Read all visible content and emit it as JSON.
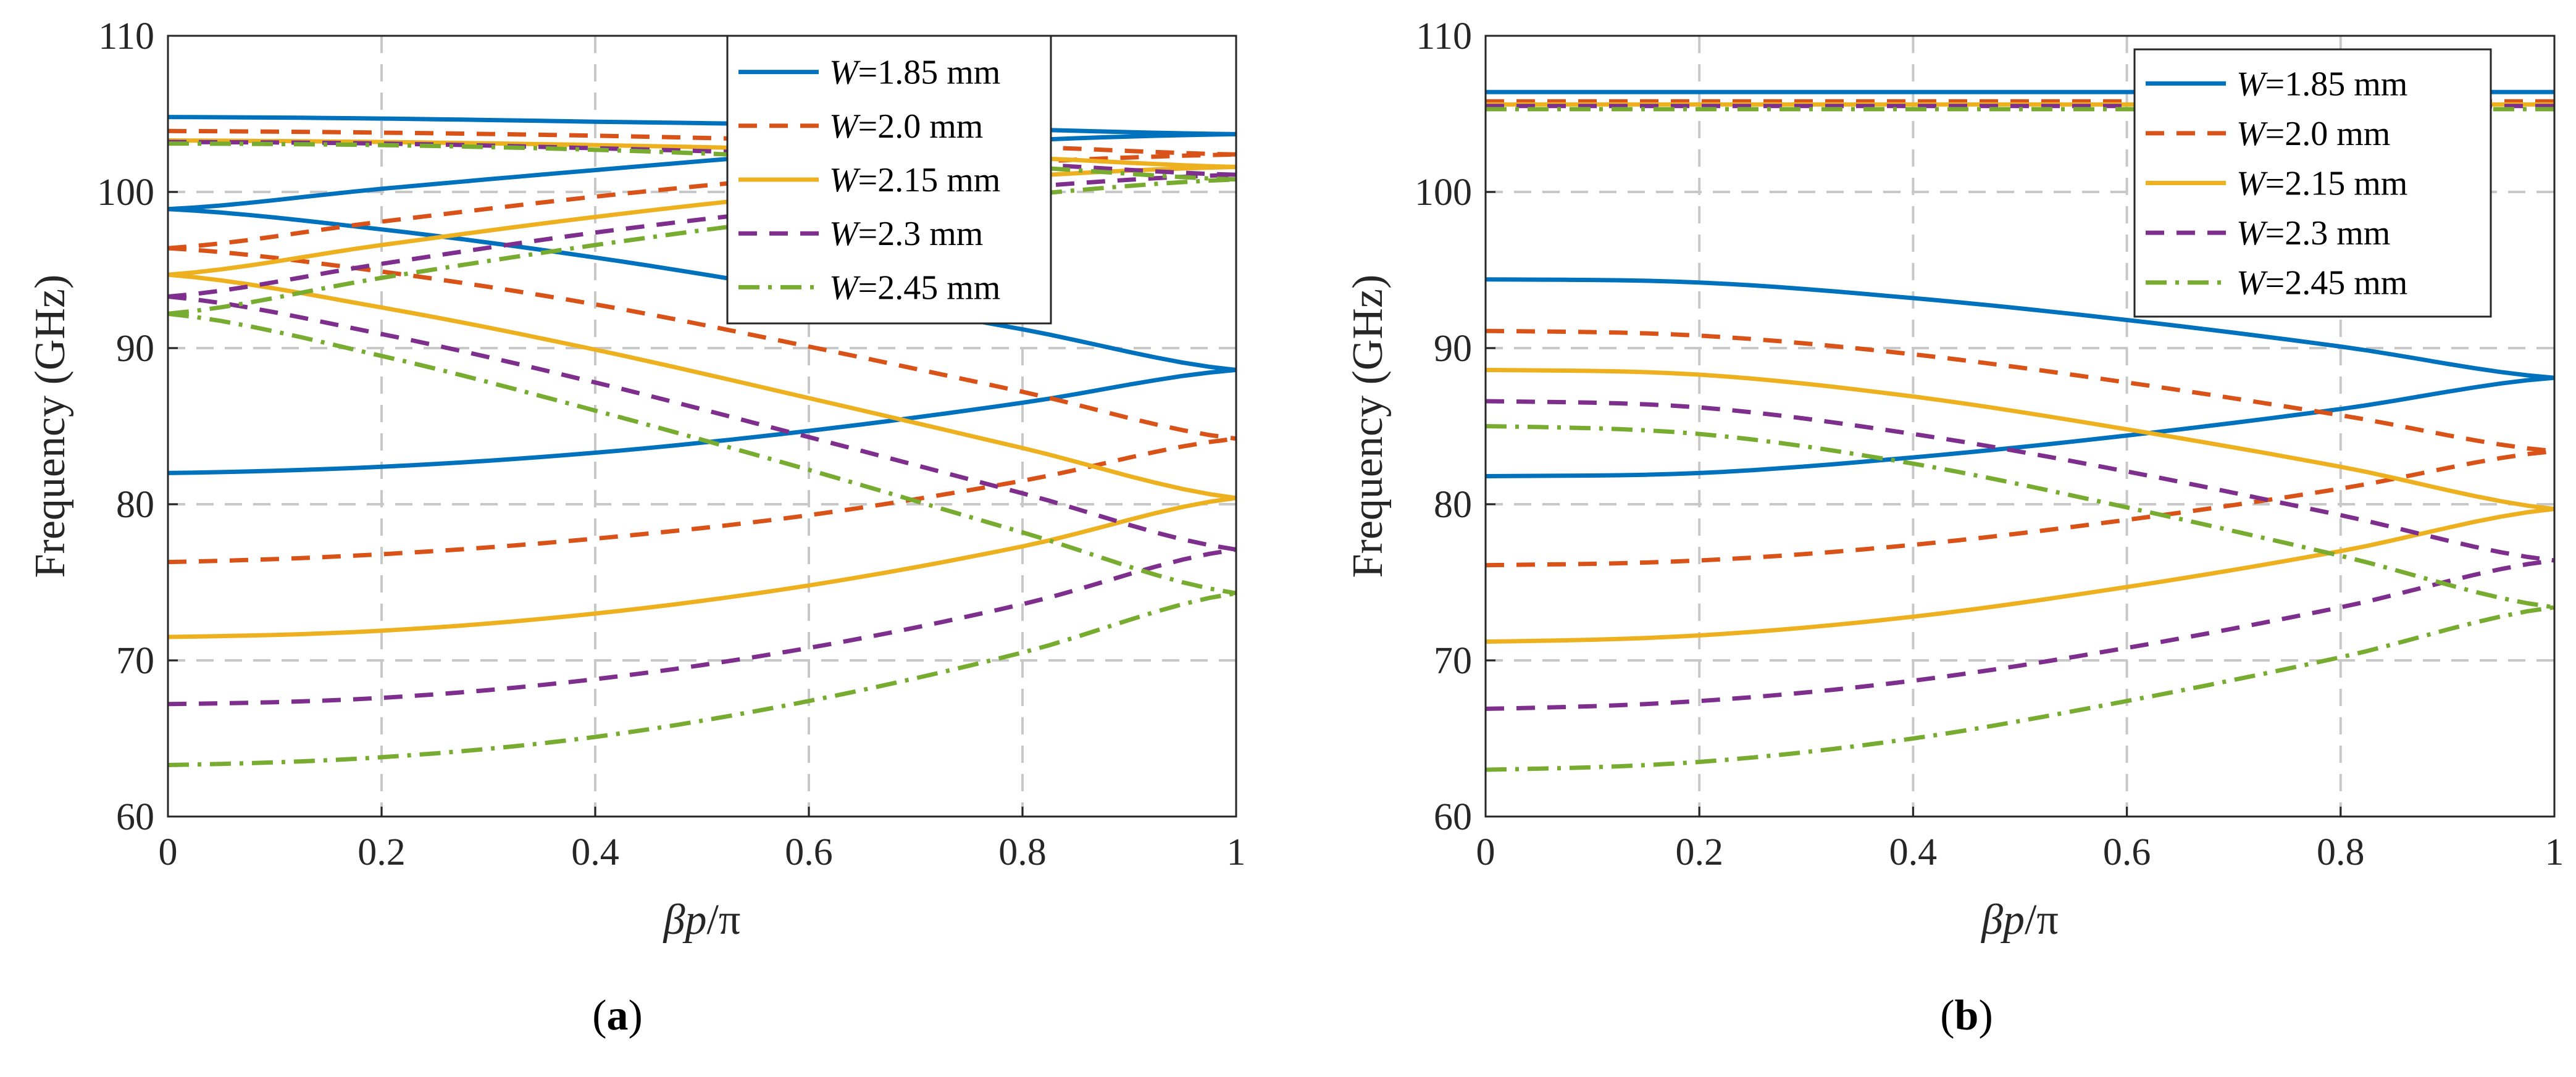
{
  "colors": {
    "blue": "#0072BD",
    "orange": "#D95319",
    "yellow": "#EDB120",
    "purple": "#7E2F8E",
    "green": "#77AC30"
  },
  "panels": [
    {
      "label_prefix": "(",
      "label_letter": "a",
      "label_suffix": ")"
    },
    {
      "label_prefix": "(",
      "label_letter": "b",
      "label_suffix": ")"
    }
  ],
  "chart_data": [
    {
      "type": "line",
      "title": "",
      "xlabel_main": "βp",
      "xlabel_tail": "/π",
      "ylabel": "Frequency (GHz)",
      "xlim": [
        0,
        1
      ],
      "ylim": [
        60,
        110
      ],
      "xticks": [
        "0",
        "0.2",
        "0.4",
        "0.6",
        "0.8",
        "1"
      ],
      "yticks": [
        "60",
        "70",
        "80",
        "90",
        "100",
        "110"
      ],
      "grid": true,
      "legend_position": "top-right",
      "x": [
        0,
        0.2,
        0.4,
        0.6,
        0.8,
        1
      ],
      "series": [
        {
          "legend_var": "W",
          "legend_rest": "=1.85 mm",
          "color": "blue",
          "style": "solid",
          "in_legend": true,
          "values": [
            82.0,
            82.4,
            83.3,
            84.7,
            86.5,
            88.6
          ]
        },
        {
          "color": "blue",
          "style": "solid",
          "in_legend": false,
          "values": [
            98.9,
            97.6,
            95.8,
            93.6,
            91.2,
            88.6
          ]
        },
        {
          "color": "blue",
          "style": "solid",
          "in_legend": false,
          "values": [
            98.9,
            100.2,
            101.4,
            102.5,
            103.3,
            103.7
          ]
        },
        {
          "color": "blue",
          "style": "solid",
          "in_legend": false,
          "values": [
            104.8,
            104.7,
            104.5,
            104.3,
            104.0,
            103.7
          ]
        },
        {
          "legend_var": "W",
          "legend_rest": "=2.0 mm",
          "color": "orange",
          "style": "dashed",
          "in_legend": true,
          "values": [
            76.3,
            76.8,
            77.8,
            79.3,
            81.5,
            84.2
          ]
        },
        {
          "color": "orange",
          "style": "dashed",
          "in_legend": false,
          "values": [
            96.4,
            94.9,
            92.8,
            90.1,
            87.2,
            84.2
          ]
        },
        {
          "color": "orange",
          "style": "dashed",
          "in_legend": false,
          "values": [
            96.4,
            98.1,
            99.7,
            101.0,
            101.9,
            102.4
          ]
        },
        {
          "color": "orange",
          "style": "dashed",
          "in_legend": false,
          "values": [
            103.9,
            103.8,
            103.6,
            103.3,
            102.9,
            102.4
          ]
        },
        {
          "legend_var": "W",
          "legend_rest": "=2.15 mm",
          "color": "yellow",
          "style": "solid",
          "in_legend": true,
          "values": [
            71.5,
            71.9,
            73.0,
            74.8,
            77.3,
            80.4
          ]
        },
        {
          "color": "yellow",
          "style": "solid",
          "in_legend": false,
          "values": [
            94.7,
            92.6,
            89.9,
            86.8,
            83.6,
            80.4
          ]
        },
        {
          "color": "yellow",
          "style": "solid",
          "in_legend": false,
          "values": [
            94.7,
            96.6,
            98.4,
            99.9,
            101.0,
            101.6
          ]
        },
        {
          "color": "yellow",
          "style": "solid",
          "in_legend": false,
          "values": [
            103.3,
            103.2,
            103.0,
            102.7,
            102.2,
            101.6
          ]
        },
        {
          "legend_var": "W",
          "legend_rest": "=2.3 mm",
          "color": "purple",
          "style": "dashed",
          "in_legend": true,
          "values": [
            67.2,
            67.6,
            68.8,
            70.8,
            73.6,
            77.1
          ]
        },
        {
          "color": "purple",
          "style": "dashed",
          "in_legend": false,
          "values": [
            93.3,
            90.9,
            87.8,
            84.3,
            80.7,
            77.1
          ]
        },
        {
          "color": "purple",
          "style": "dashed",
          "in_legend": false,
          "values": [
            93.3,
            95.4,
            97.4,
            99.0,
            100.3,
            101.1
          ]
        },
        {
          "color": "purple",
          "style": "dashed",
          "in_legend": false,
          "values": [
            103.2,
            103.1,
            102.8,
            102.4,
            101.8,
            101.1
          ]
        },
        {
          "legend_var": "W",
          "legend_rest": "=2.45 mm",
          "color": "green",
          "style": "dashdot",
          "in_legend": true,
          "values": [
            63.3,
            63.8,
            65.1,
            67.4,
            70.5,
            74.3
          ]
        },
        {
          "color": "green",
          "style": "dashdot",
          "in_legend": false,
          "values": [
            92.2,
            89.5,
            86.0,
            82.2,
            78.2,
            74.3
          ]
        },
        {
          "color": "green",
          "style": "dashdot",
          "in_legend": false,
          "values": [
            92.2,
            94.5,
            96.6,
            98.4,
            99.8,
            100.8
          ]
        },
        {
          "color": "green",
          "style": "dashdot",
          "in_legend": false,
          "values": [
            103.1,
            103.0,
            102.7,
            102.2,
            101.6,
            100.8
          ]
        }
      ]
    },
    {
      "type": "line",
      "title": "",
      "xlabel_main": "βp",
      "xlabel_tail": "/π",
      "ylabel": "Frequency (GHz)",
      "xlim": [
        0,
        1
      ],
      "ylim": [
        60,
        110
      ],
      "xticks": [
        "0",
        "0.2",
        "0.4",
        "0.6",
        "0.8",
        "1"
      ],
      "yticks": [
        "60",
        "70",
        "80",
        "90",
        "100",
        "110"
      ],
      "grid": true,
      "legend_position": "top-right",
      "x": [
        0,
        0.2,
        0.4,
        0.6,
        0.8,
        1
      ],
      "series": [
        {
          "legend_var": "W",
          "legend_rest": "=1.85 mm",
          "color": "blue",
          "style": "solid",
          "in_legend": true,
          "values": [
            81.8,
            82.0,
            83.0,
            84.4,
            86.1,
            88.1
          ]
        },
        {
          "color": "blue",
          "style": "solid",
          "in_legend": false,
          "values": [
            94.4,
            94.2,
            93.2,
            91.8,
            90.1,
            88.1
          ]
        },
        {
          "color": "blue",
          "style": "solid",
          "in_legend": false,
          "values": [
            106.4,
            106.4,
            106.4,
            106.4,
            106.4,
            106.4
          ]
        },
        {
          "legend_var": "W",
          "legend_rest": "=2.0 mm",
          "color": "orange",
          "style": "dashed",
          "in_legend": true,
          "values": [
            76.1,
            76.4,
            77.4,
            79.0,
            81.0,
            83.4
          ]
        },
        {
          "color": "orange",
          "style": "dashed",
          "in_legend": false,
          "values": [
            91.1,
            90.8,
            89.6,
            87.8,
            85.7,
            83.4
          ]
        },
        {
          "color": "orange",
          "style": "dashed",
          "in_legend": false,
          "values": [
            105.8,
            105.8,
            105.8,
            105.8,
            105.8,
            105.8
          ]
        },
        {
          "legend_var": "W",
          "legend_rest": "=2.15 mm",
          "color": "yellow",
          "style": "solid",
          "in_legend": true,
          "values": [
            71.2,
            71.6,
            72.8,
            74.7,
            77.0,
            79.7
          ]
        },
        {
          "color": "yellow",
          "style": "solid",
          "in_legend": false,
          "values": [
            88.6,
            88.3,
            86.9,
            84.8,
            82.4,
            79.7
          ]
        },
        {
          "color": "yellow",
          "style": "solid",
          "in_legend": false,
          "values": [
            105.6,
            105.6,
            105.6,
            105.6,
            105.6,
            105.6
          ]
        },
        {
          "legend_var": "W",
          "legend_rest": "=2.3 mm",
          "color": "purple",
          "style": "dashed",
          "in_legend": true,
          "values": [
            66.9,
            67.4,
            68.7,
            70.8,
            73.4,
            76.4
          ]
        },
        {
          "color": "purple",
          "style": "dashed",
          "in_legend": false,
          "values": [
            86.6,
            86.2,
            84.5,
            82.1,
            79.3,
            76.4
          ]
        },
        {
          "color": "purple",
          "style": "dashed",
          "in_legend": false,
          "values": [
            105.5,
            105.5,
            105.5,
            105.5,
            105.5,
            105.5
          ]
        },
        {
          "legend_var": "W",
          "legend_rest": "=2.45 mm",
          "color": "green",
          "style": "dashdot",
          "in_legend": true,
          "values": [
            63.0,
            63.5,
            65.0,
            67.4,
            70.2,
            73.4
          ]
        },
        {
          "color": "green",
          "style": "dashdot",
          "in_legend": false,
          "values": [
            85.0,
            84.5,
            82.6,
            79.8,
            76.7,
            73.4
          ]
        },
        {
          "color": "green",
          "style": "dashdot",
          "in_legend": false,
          "values": [
            105.3,
            105.3,
            105.3,
            105.3,
            105.3,
            105.3
          ]
        }
      ]
    }
  ]
}
